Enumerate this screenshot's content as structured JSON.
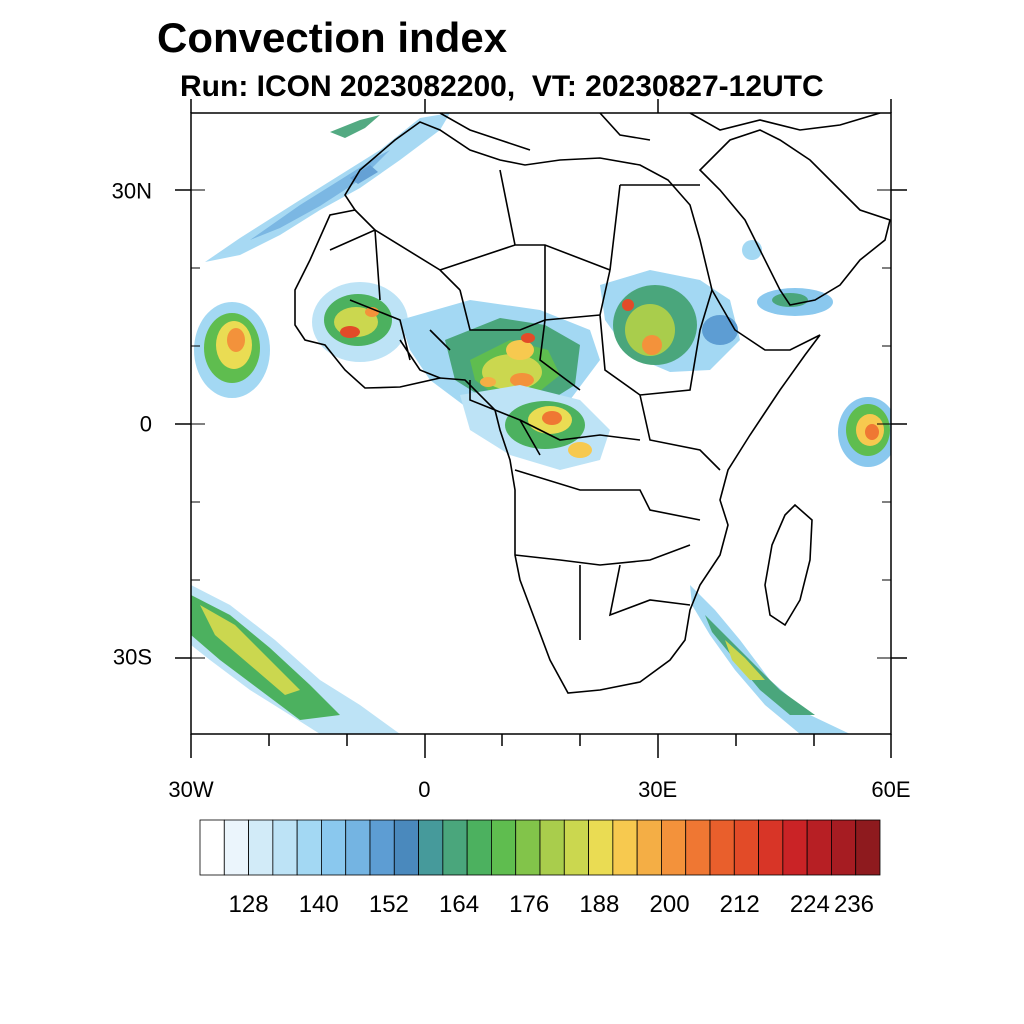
{
  "title": "Convection index",
  "subtitle": "Run: ICON 2023082200,  VT: 20230827-12UTC",
  "chart_data": {
    "type": "heatmap",
    "title": "Convection index",
    "subtitle": "Run: ICON 2023082200,  VT: 20230827-12UTC",
    "lon_range": [
      -30,
      60
    ],
    "lat_range": [
      -40,
      40
    ],
    "x_ticks": [
      {
        "value": -30,
        "label": "30W"
      },
      {
        "value": 0,
        "label": "0"
      },
      {
        "value": 30,
        "label": "30E"
      },
      {
        "value": 60,
        "label": "60E"
      }
    ],
    "y_ticks": [
      {
        "value": 30,
        "label": "30N"
      },
      {
        "value": 0,
        "label": "0"
      },
      {
        "value": -30,
        "label": "30S"
      }
    ],
    "colorbar": {
      "levels": [
        122,
        125,
        128,
        131,
        134,
        137,
        140,
        143,
        146,
        149,
        152,
        155,
        158,
        161,
        164,
        167,
        170,
        173,
        176,
        179,
        182,
        185,
        188,
        191,
        194,
        197,
        200,
        203,
        206,
        209,
        212,
        215,
        218,
        221,
        224,
        227,
        230,
        233,
        236
      ],
      "labels": [
        "128",
        "140",
        "152",
        "164",
        "176",
        "188",
        "200",
        "212",
        "224",
        "236"
      ],
      "colors": [
        "#ffffff",
        "#ebf5fc",
        "#d2ebf8",
        "#bde3f6",
        "#a3d8f3",
        "#8ac8ee",
        "#74b4e2",
        "#5d9dd3",
        "#4a89bd",
        "#469a9b",
        "#4aa67c",
        "#4cb15f",
        "#5fbd4f",
        "#82c44a",
        "#a9cd4c",
        "#cbd74f",
        "#eadc53",
        "#f7c94f",
        "#f4ae45",
        "#f3923b",
        "#ef7733",
        "#e95f2c",
        "#e24b28",
        "#d83527",
        "#ca2326",
        "#b71f24",
        "#a61c22",
        "#8e1a1e"
      ]
    },
    "map_features": [
      "coastlines",
      "country borders"
    ]
  }
}
